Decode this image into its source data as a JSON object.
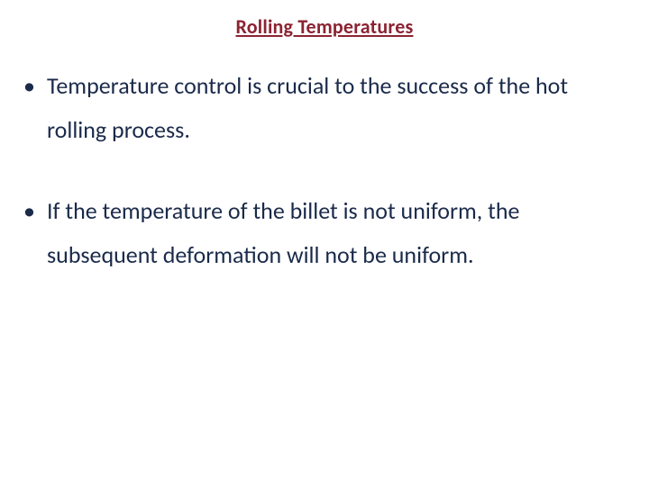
{
  "slide": {
    "title": "Rolling Temperatures",
    "title_color": "#8b2332",
    "body_color": "#1a2a4a",
    "background_color": "#ffffff",
    "title_fontsize": 22,
    "body_fontsize": 26,
    "bullets": [
      "Temperature control is crucial to the success of the hot rolling process.",
      "If the temperature of the billet is not uniform, the subsequent deformation will not be uniform."
    ]
  }
}
